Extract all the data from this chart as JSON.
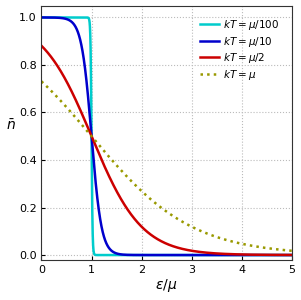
{
  "title": "",
  "xlabel": "$\\epsilon/\\mu$",
  "ylabel": "$\\bar{n}$",
  "xlim": [
    0,
    5
  ],
  "ylim": [
    -0.02,
    1.05
  ],
  "curves": [
    {
      "label": "$kT=\\mu/100$",
      "kT_factor": 0.01,
      "color": "#00CCCC",
      "lw": 1.8,
      "linestyle": "-"
    },
    {
      "label": "$kT=\\mu/10$",
      "kT_factor": 0.1,
      "color": "#0000CC",
      "lw": 1.8,
      "linestyle": "-"
    },
    {
      "label": "$kT=\\mu/2$",
      "kT_factor": 0.5,
      "color": "#CC0000",
      "lw": 1.8,
      "linestyle": "-"
    },
    {
      "label": "$kT=\\mu$",
      "kT_factor": 1.0,
      "color": "#999900",
      "lw": 1.8,
      "linestyle": ":"
    }
  ],
  "grid_color": "#bbbbbb",
  "grid_linestyle": ":",
  "xticks": [
    0,
    1,
    2,
    3,
    4,
    5
  ],
  "yticks": [
    0.0,
    0.2,
    0.4,
    0.6,
    0.8,
    1.0
  ],
  "background_color": "#ffffff",
  "legend_fontsize": 7.5,
  "legend_loc": "upper right"
}
